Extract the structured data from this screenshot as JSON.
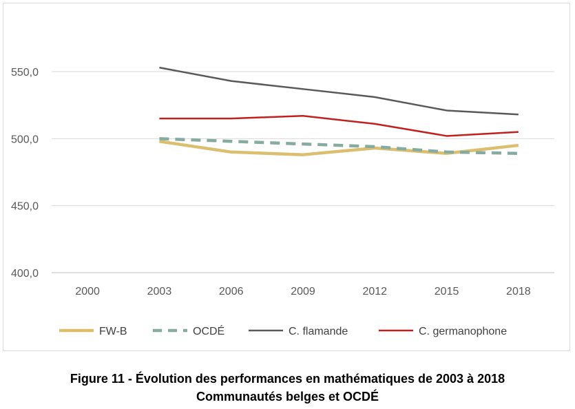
{
  "chart_data": {
    "type": "line",
    "title": "",
    "xlabel": "",
    "ylabel": "",
    "categories": [
      "2000",
      "2003",
      "2006",
      "2009",
      "2012",
      "2015",
      "2018"
    ],
    "ylim": [
      400,
      550
    ],
    "yticks": [
      400,
      450,
      500,
      550
    ],
    "ytick_labels": [
      "400,0",
      "450,0",
      "500,0",
      "550,0"
    ],
    "grid": true,
    "legend_position": "bottom",
    "series": [
      {
        "name": "FW-B",
        "color": "#dcbf6e",
        "style": "solid-thick",
        "values": [
          null,
          498,
          490,
          488,
          493,
          489,
          495
        ]
      },
      {
        "name": "OCDÉ",
        "color": "#86aba0",
        "style": "dashed",
        "values": [
          null,
          500,
          498,
          496,
          494,
          490,
          489
        ]
      },
      {
        "name": "C. flamande",
        "color": "#595959",
        "style": "solid",
        "values": [
          null,
          553,
          543,
          537,
          531,
          521,
          518
        ]
      },
      {
        "name": "C. germanophone",
        "color": "#c0201e",
        "style": "solid",
        "values": [
          null,
          515,
          515,
          517,
          511,
          502,
          505
        ]
      }
    ]
  },
  "caption": {
    "line1": "Figure 11 - Évolution des performances en mathématiques de 2003 à 2018",
    "line2": "Communautés belges et OCDÉ"
  }
}
